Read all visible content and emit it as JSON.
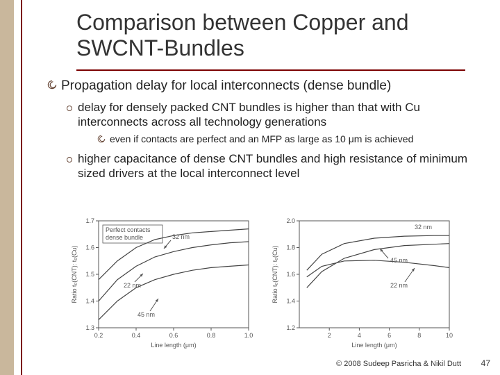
{
  "colors": {
    "accent_bar": "#c9b79c",
    "rule": "#7b0000",
    "bullet_sub_ring": "#6a4a3a",
    "text": "#222222",
    "chart_axis": "#555555",
    "chart_curve": "#444444",
    "background": "#ffffff"
  },
  "title": "Comparison between Copper and SWCNT-Bundles",
  "title_fontsize": 32,
  "bullets": {
    "p1": "Propagation delay for local interconnects (dense bundle)",
    "p1_sub1": "delay for densely packed CNT bundles is higher than that with Cu interconnects across all technology generations",
    "p1_sub1_sub": "even if contacts are perfect and an MFP as large as 10 μm is achieved",
    "p1_sub2": "higher capacitance of dense CNT bundles and high resistance of minimum sized drivers at the local interconnect level"
  },
  "chart_left": {
    "type": "line",
    "title_box": "Perfect contacts\ndense bundle",
    "xlabel": "Line length (μm)",
    "ylabel": "Ratio t₀(CNT): t₀(Cu)",
    "xlim": [
      0.2,
      1.0
    ],
    "ylim": [
      1.3,
      1.7
    ],
    "xtick_labels": [
      "0.2",
      "0.4",
      "0.6",
      "0.8",
      "1.0"
    ],
    "ytick_labels": [
      "1.3",
      "1.4",
      "1.5",
      "1.6",
      "1.7"
    ],
    "annotations": [
      "32 nm",
      "22 nm",
      "45 nm"
    ],
    "series": [
      {
        "name": "32nm",
        "points": [
          [
            0.2,
            1.48
          ],
          [
            0.3,
            1.55
          ],
          [
            0.4,
            1.6
          ],
          [
            0.5,
            1.63
          ],
          [
            0.6,
            1.645
          ],
          [
            0.7,
            1.655
          ],
          [
            0.8,
            1.66
          ],
          [
            0.9,
            1.665
          ],
          [
            1.0,
            1.67
          ]
        ]
      },
      {
        "name": "22nm",
        "points": [
          [
            0.2,
            1.4
          ],
          [
            0.3,
            1.48
          ],
          [
            0.4,
            1.53
          ],
          [
            0.5,
            1.565
          ],
          [
            0.6,
            1.585
          ],
          [
            0.7,
            1.6
          ],
          [
            0.8,
            1.61
          ],
          [
            0.9,
            1.618
          ],
          [
            1.0,
            1.622
          ]
        ]
      },
      {
        "name": "45nm",
        "points": [
          [
            0.2,
            1.33
          ],
          [
            0.3,
            1.4
          ],
          [
            0.4,
            1.45
          ],
          [
            0.5,
            1.48
          ],
          [
            0.6,
            1.5
          ],
          [
            0.7,
            1.515
          ],
          [
            0.8,
            1.525
          ],
          [
            0.9,
            1.53
          ],
          [
            1.0,
            1.535
          ]
        ]
      }
    ],
    "axis_color": "#555555",
    "curve_color": "#444444",
    "fontsize": 9
  },
  "chart_right": {
    "type": "line",
    "xlabel": "Line length (μm)",
    "ylabel": "Ratio t₀(CNT): t₀(Cu)",
    "xlim": [
      0,
      10
    ],
    "ylim": [
      1.2,
      2.0
    ],
    "xtick_labels": [
      "2",
      "4",
      "6",
      "8",
      "10"
    ],
    "ytick_labels": [
      "1.2",
      "1.4",
      "1.6",
      "1.8",
      "2.0"
    ],
    "annotations": [
      "32 nm",
      "45 nm",
      "22 nm"
    ],
    "series": [
      {
        "name": "32nm",
        "points": [
          [
            0.5,
            1.63
          ],
          [
            1.5,
            1.75
          ],
          [
            3,
            1.83
          ],
          [
            5,
            1.87
          ],
          [
            7,
            1.885
          ],
          [
            9,
            1.89
          ],
          [
            10,
            1.89
          ]
        ]
      },
      {
        "name": "45nm",
        "points": [
          [
            0.5,
            1.5
          ],
          [
            1.5,
            1.62
          ],
          [
            3,
            1.72
          ],
          [
            5,
            1.785
          ],
          [
            7,
            1.815
          ],
          [
            9,
            1.825
          ],
          [
            10,
            1.83
          ]
        ]
      },
      {
        "name": "22nm",
        "points": [
          [
            0.5,
            1.58
          ],
          [
            1.5,
            1.66
          ],
          [
            3,
            1.7
          ],
          [
            5,
            1.705
          ],
          [
            7,
            1.69
          ],
          [
            9,
            1.665
          ],
          [
            10,
            1.65
          ]
        ]
      }
    ],
    "axis_color": "#555555",
    "curve_color": "#444444",
    "fontsize": 9
  },
  "copyright": "© 2008 Sudeep Pasricha & Nikil Dutt",
  "pagenum": "47"
}
